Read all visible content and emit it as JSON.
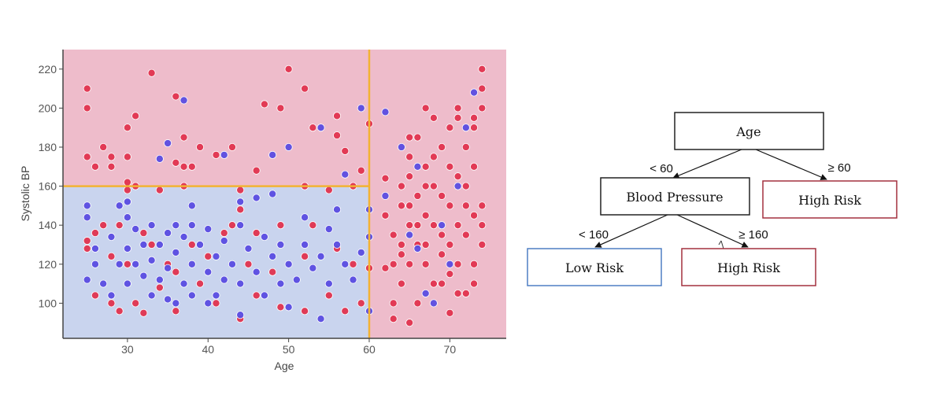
{
  "chart_data": {
    "type": "scatter",
    "xlabel": "Age",
    "ylabel": "Systolic BP",
    "xlim": [
      22,
      77
    ],
    "ylim": [
      82,
      230
    ],
    "xticks": [
      30,
      40,
      50,
      60,
      70
    ],
    "yticks": [
      100,
      120,
      140,
      160,
      180,
      200,
      220
    ],
    "grid": false,
    "decision_regions": [
      {
        "label": "Low Risk",
        "age_max": 60,
        "bp_max": 160,
        "color": "#c9d4ee"
      },
      {
        "label": "High Risk",
        "age_max": 60,
        "bp_min": 160,
        "color": "#eebccb"
      },
      {
        "label": "High Risk",
        "age_min": 60,
        "color": "#eebccb"
      }
    ],
    "split_lines": [
      {
        "axis": "x",
        "value": 60,
        "color": "#f2b233"
      },
      {
        "axis": "y",
        "value": 160,
        "age_max": 60,
        "color": "#f2b233"
      }
    ],
    "series": [
      {
        "color": "#e0334e",
        "points": [
          [
            25,
            210
          ],
          [
            25,
            200
          ],
          [
            25,
            175
          ],
          [
            26,
            170
          ],
          [
            27,
            180
          ],
          [
            28,
            175
          ],
          [
            28,
            170
          ],
          [
            30,
            190
          ],
          [
            30,
            175
          ],
          [
            31,
            196
          ],
          [
            33,
            218
          ],
          [
            36,
            206
          ],
          [
            36,
            172
          ],
          [
            37,
            185
          ],
          [
            37,
            170
          ],
          [
            38,
            170
          ],
          [
            39,
            180
          ],
          [
            41,
            176
          ],
          [
            43,
            180
          ],
          [
            46,
            168
          ],
          [
            47,
            202
          ],
          [
            49,
            200
          ],
          [
            50,
            220
          ],
          [
            52,
            210
          ],
          [
            53,
            190
          ],
          [
            56,
            196
          ],
          [
            56,
            186
          ],
          [
            57,
            178
          ],
          [
            59,
            168
          ],
          [
            60,
            192
          ],
          [
            30,
            162
          ],
          [
            30,
            158
          ],
          [
            31,
            160
          ],
          [
            34,
            158
          ],
          [
            37,
            160
          ],
          [
            44,
            158
          ],
          [
            52,
            160
          ],
          [
            55,
            158
          ],
          [
            58,
            160
          ],
          [
            25,
            132
          ],
          [
            25,
            128
          ],
          [
            26,
            136
          ],
          [
            27,
            140
          ],
          [
            28,
            124
          ],
          [
            29,
            140
          ],
          [
            30,
            120
          ],
          [
            32,
            136
          ],
          [
            33,
            130
          ],
          [
            35,
            120
          ],
          [
            36,
            116
          ],
          [
            38,
            130
          ],
          [
            40,
            124
          ],
          [
            42,
            136
          ],
          [
            43,
            140
          ],
          [
            44,
            148
          ],
          [
            45,
            120
          ],
          [
            46,
            136
          ],
          [
            48,
            116
          ],
          [
            49,
            140
          ],
          [
            52,
            124
          ],
          [
            53,
            140
          ],
          [
            56,
            128
          ],
          [
            58,
            120
          ],
          [
            60,
            118
          ],
          [
            26,
            104
          ],
          [
            28,
            100
          ],
          [
            29,
            96
          ],
          [
            31,
            100
          ],
          [
            32,
            95
          ],
          [
            34,
            108
          ],
          [
            36,
            96
          ],
          [
            39,
            110
          ],
          [
            41,
            100
          ],
          [
            44,
            92
          ],
          [
            46,
            104
          ],
          [
            49,
            98
          ],
          [
            52,
            96
          ],
          [
            55,
            104
          ],
          [
            57,
            96
          ],
          [
            59,
            100
          ],
          [
            62,
            145
          ],
          [
            63,
            135
          ],
          [
            63,
            120
          ],
          [
            64,
            110
          ],
          [
            64,
            125
          ],
          [
            64,
            160
          ],
          [
            65,
            175
          ],
          [
            65,
            150
          ],
          [
            65,
            140
          ],
          [
            66,
            185
          ],
          [
            66,
            130
          ],
          [
            66,
            100
          ],
          [
            67,
            160
          ],
          [
            67,
            120
          ],
          [
            67,
            145
          ],
          [
            68,
            195
          ],
          [
            68,
            175
          ],
          [
            68,
            110
          ],
          [
            69,
            155
          ],
          [
            69,
            135
          ],
          [
            69,
            125
          ],
          [
            70,
            190
          ],
          [
            70,
            170
          ],
          [
            70,
            150
          ],
          [
            71,
            200
          ],
          [
            71,
            140
          ],
          [
            71,
            120
          ],
          [
            72,
            180
          ],
          [
            72,
            160
          ],
          [
            72,
            105
          ],
          [
            73,
            190
          ],
          [
            73,
            170
          ],
          [
            73,
            145
          ],
          [
            74,
            210
          ],
          [
            74,
            200
          ],
          [
            74,
            130
          ],
          [
            74,
            220
          ],
          [
            73,
            120
          ],
          [
            72,
            135
          ],
          [
            71,
            165
          ],
          [
            70,
            115
          ],
          [
            69,
            180
          ],
          [
            68,
            140
          ],
          [
            67,
            170
          ],
          [
            66,
            155
          ],
          [
            65,
            165
          ],
          [
            64,
            130
          ],
          [
            63,
            100
          ],
          [
            62,
            118
          ],
          [
            64,
            150
          ],
          [
            66,
            140
          ],
          [
            68,
            160
          ],
          [
            70,
            130
          ],
          [
            72,
            150
          ],
          [
            74,
            150
          ],
          [
            73,
            110
          ],
          [
            71,
            105
          ],
          [
            69,
            110
          ],
          [
            67,
            130
          ],
          [
            65,
            120
          ],
          [
            63,
            92
          ],
          [
            65,
            90
          ],
          [
            70,
            95
          ],
          [
            74,
            140
          ],
          [
            73,
            195
          ],
          [
            62,
            164
          ],
          [
            65,
            185
          ],
          [
            67,
            200
          ],
          [
            71,
            195
          ]
        ]
      },
      {
        "color": "#5a4ce0",
        "points": [
          [
            25,
            150
          ],
          [
            25,
            144
          ],
          [
            25,
            112
          ],
          [
            26,
            128
          ],
          [
            26,
            120
          ],
          [
            27,
            110
          ],
          [
            28,
            134
          ],
          [
            28,
            104
          ],
          [
            29,
            150
          ],
          [
            29,
            120
          ],
          [
            30,
            144
          ],
          [
            30,
            128
          ],
          [
            30,
            110
          ],
          [
            31,
            138
          ],
          [
            31,
            120
          ],
          [
            32,
            130
          ],
          [
            32,
            114
          ],
          [
            33,
            140
          ],
          [
            33,
            122
          ],
          [
            33,
            104
          ],
          [
            34,
            130
          ],
          [
            34,
            112
          ],
          [
            35,
            136
          ],
          [
            35,
            118
          ],
          [
            35,
            102
          ],
          [
            36,
            140
          ],
          [
            36,
            126
          ],
          [
            37,
            134
          ],
          [
            37,
            110
          ],
          [
            38,
            140
          ],
          [
            38,
            120
          ],
          [
            38,
            104
          ],
          [
            39,
            130
          ],
          [
            40,
            138
          ],
          [
            40,
            116
          ],
          [
            41,
            124
          ],
          [
            41,
            104
          ],
          [
            42,
            132
          ],
          [
            42,
            112
          ],
          [
            43,
            120
          ],
          [
            44,
            140
          ],
          [
            44,
            110
          ],
          [
            45,
            128
          ],
          [
            46,
            116
          ],
          [
            47,
            134
          ],
          [
            47,
            104
          ],
          [
            48,
            124
          ],
          [
            49,
            130
          ],
          [
            49,
            110
          ],
          [
            50,
            120
          ],
          [
            51,
            112
          ],
          [
            52,
            130
          ],
          [
            53,
            118
          ],
          [
            54,
            124
          ],
          [
            55,
            138
          ],
          [
            55,
            110
          ],
          [
            56,
            130
          ],
          [
            57,
            120
          ],
          [
            58,
            112
          ],
          [
            59,
            126
          ],
          [
            60,
            134
          ],
          [
            37,
            204
          ],
          [
            35,
            182
          ],
          [
            42,
            176
          ],
          [
            48,
            176
          ],
          [
            50,
            180
          ],
          [
            54,
            190
          ],
          [
            57,
            166
          ],
          [
            59,
            200
          ],
          [
            62,
            198
          ],
          [
            34,
            174
          ],
          [
            38,
            150
          ],
          [
            44,
            152
          ],
          [
            48,
            156
          ],
          [
            52,
            144
          ],
          [
            56,
            148
          ],
          [
            60,
            148
          ],
          [
            30,
            152
          ],
          [
            46,
            154
          ],
          [
            44,
            94
          ],
          [
            50,
            98
          ],
          [
            36,
            100
          ],
          [
            60,
            96
          ],
          [
            54,
            92
          ],
          [
            40,
            100
          ],
          [
            64,
            180
          ],
          [
            66,
            170
          ],
          [
            67,
            105
          ],
          [
            68,
            100
          ],
          [
            69,
            140
          ],
          [
            70,
            120
          ],
          [
            71,
            160
          ],
          [
            72,
            190
          ],
          [
            73,
            208
          ],
          [
            65,
            135
          ],
          [
            62,
            155
          ],
          [
            66,
            128
          ]
        ]
      }
    ]
  },
  "tree": {
    "root": {
      "label": "Age"
    },
    "edge_left": "< 60",
    "edge_right": "≥ 60",
    "node_bp": {
      "label": "Blood Pressure"
    },
    "leaf_high_age": {
      "label": "High Risk"
    },
    "edge_bp_left": "< 160",
    "edge_bp_right": "≥ 160",
    "leaf_low": {
      "label": "Low Risk"
    },
    "leaf_high_bp": {
      "label": "High Risk"
    },
    "colors": {
      "neutral": "#222222",
      "low": "#4f7fc4",
      "high": "#a3303f"
    }
  }
}
